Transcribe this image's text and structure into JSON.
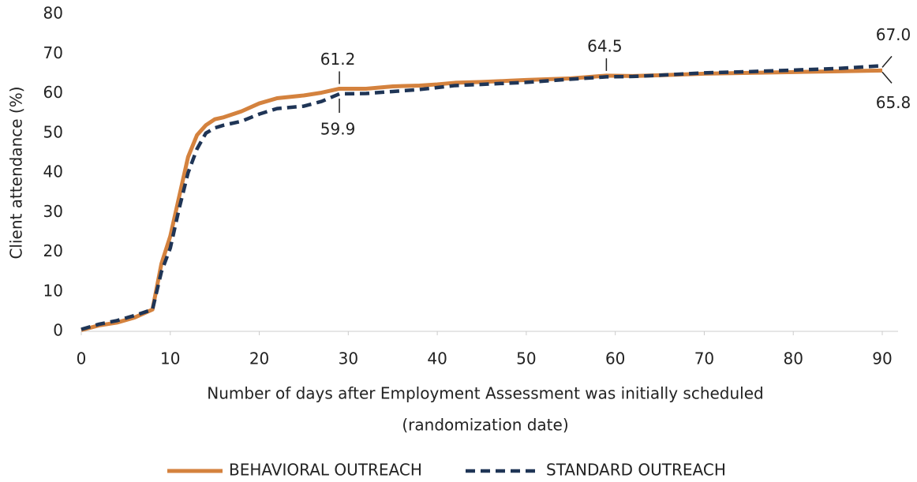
{
  "chart_data": {
    "type": "line",
    "ylabel": "Client attendance (%)",
    "xlabel": [
      "Number of days after Employment Assessment was initially scheduled",
      "(randomization date)"
    ],
    "x": [
      0,
      2,
      4,
      6,
      8,
      9,
      10,
      11,
      12,
      13,
      14,
      15,
      16,
      18,
      20,
      22,
      25,
      27,
      29,
      32,
      35,
      38,
      40,
      42,
      45,
      48,
      50,
      55,
      59,
      62,
      65,
      70,
      75,
      80,
      85,
      90
    ],
    "series": [
      {
        "name": "BEHAVIORAL OUTREACH",
        "color": "#d4823e",
        "dash": false,
        "values": [
          0.3,
          1.5,
          2.2,
          3.5,
          5.5,
          17,
          24,
          34,
          44,
          49.5,
          52,
          53.5,
          54,
          55.5,
          57.5,
          58.8,
          59.5,
          60.2,
          61.2,
          61.2,
          61.8,
          62,
          62.3,
          62.7,
          62.9,
          63.2,
          63.4,
          63.8,
          64.5,
          64.4,
          64.6,
          65,
          65.2,
          65.4,
          65.6,
          65.8
        ]
      },
      {
        "name": "STANDARD OUTREACH",
        "color": "#1f3556",
        "dash": true,
        "values": [
          0.5,
          1.8,
          2.7,
          4,
          5.5,
          15,
          21,
          31,
          40,
          46,
          50,
          51.3,
          52,
          53,
          54.8,
          56.2,
          56.8,
          58,
          59.9,
          60,
          60.5,
          61,
          61.5,
          62,
          62.3,
          62.6,
          62.8,
          63.6,
          64.2,
          64.3,
          64.6,
          65.2,
          65.5,
          65.9,
          66.3,
          67.0
        ]
      }
    ],
    "annotations": [
      {
        "x": 29,
        "value": 61.2,
        "label": "61.2",
        "position": "above"
      },
      {
        "x": 29,
        "value": 59.9,
        "label": "59.9",
        "position": "below"
      },
      {
        "x": 59,
        "value": 64.5,
        "label": "64.5",
        "position": "above"
      },
      {
        "x": 90,
        "value": 67.0,
        "label": "67.0",
        "position": "above-right"
      },
      {
        "x": 90,
        "value": 65.8,
        "label": "65.8",
        "position": "below-right"
      }
    ],
    "xlim": [
      0,
      90
    ],
    "xticks": [
      0,
      10,
      20,
      30,
      40,
      50,
      60,
      70,
      80,
      90
    ],
    "ylim": [
      0,
      80
    ],
    "yticks": [
      0,
      10,
      20,
      30,
      40,
      50,
      60,
      70,
      80
    ],
    "grid": false,
    "legend": "bottom"
  }
}
